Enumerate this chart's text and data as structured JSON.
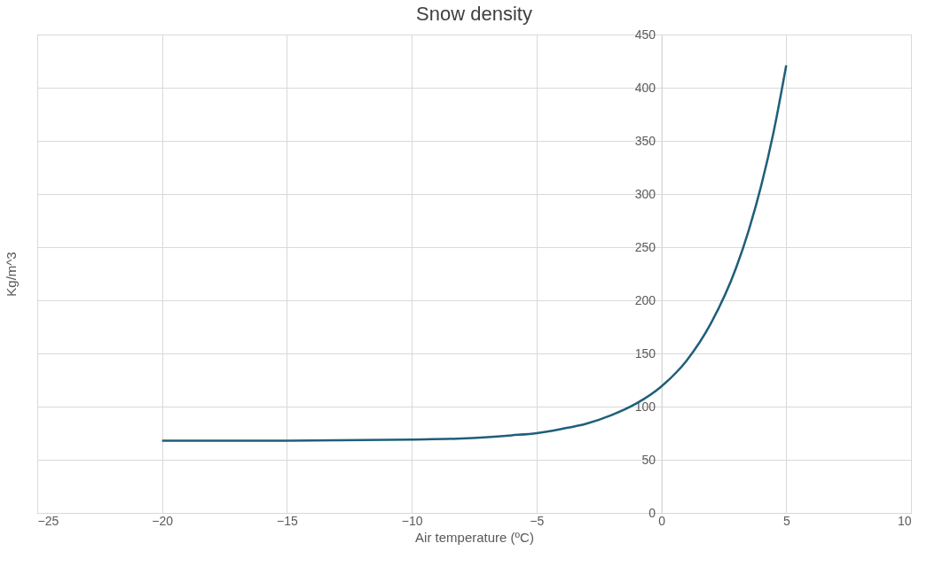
{
  "chart_data": {
    "type": "line",
    "title": "Snow density",
    "xlabel": "Air temperature (ºC)",
    "ylabel": "Kg/m^3",
    "x": [
      -20,
      -15,
      -10,
      -8,
      -6,
      -5,
      -4,
      -3,
      -2,
      -1,
      0,
      1,
      2,
      3,
      3.5,
      4,
      4.5,
      5
    ],
    "series": [
      {
        "color": "#1f5f7a",
        "values": [
          68,
          68,
          69,
          70,
          73,
          75,
          79,
          84,
          92,
          103,
          119,
          143,
          179,
          231,
          266,
          308,
          359,
          421
        ]
      }
    ],
    "xlim": [
      -25,
      10
    ],
    "xticks": [
      -25,
      -20,
      -15,
      -10,
      -5,
      0,
      5,
      10
    ],
    "ylim": [
      0,
      450
    ],
    "yticks": [
      0,
      50,
      100,
      150,
      200,
      250,
      300,
      350,
      400,
      450
    ],
    "grid": true,
    "marker": "none",
    "line_style": "solid"
  }
}
